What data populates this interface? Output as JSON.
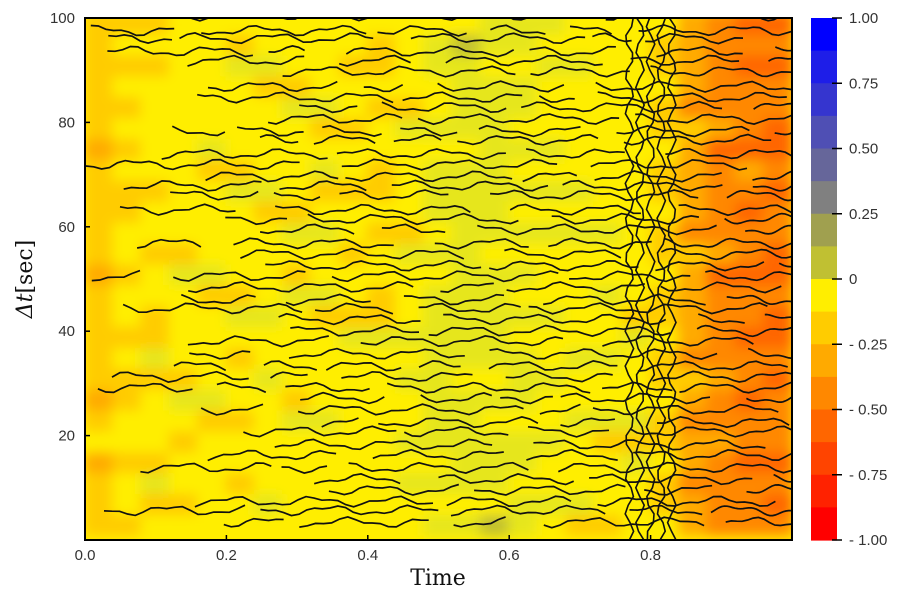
{
  "chart_data": {
    "type": "heatmap",
    "title": "",
    "xlabel": "Time",
    "ylabel_prefix": "Δt",
    "ylabel_unit": "[sec]",
    "xlim": [
      0,
      1
    ],
    "ylim": [
      0,
      100
    ],
    "x_ticks": [
      "0.0",
      "0.2",
      "0.4",
      "0.6",
      "0.8"
    ],
    "x_tick_values": [
      0.0,
      0.2,
      0.4,
      0.6,
      0.8
    ],
    "y_ticks": [
      "20",
      "40",
      "60",
      "80",
      "100"
    ],
    "y_tick_values": [
      20,
      40,
      60,
      80,
      100
    ],
    "x": [
      0.02,
      0.06,
      0.1,
      0.14,
      0.18,
      0.22,
      0.26,
      0.3,
      0.34,
      0.38,
      0.42,
      0.46,
      0.5,
      0.54,
      0.58,
      0.62,
      0.66,
      0.7,
      0.74,
      0.78,
      0.82,
      0.86,
      0.9,
      0.94,
      0.98
    ],
    "y": [
      3,
      7,
      11,
      15,
      19,
      23,
      27,
      31,
      35,
      39,
      43,
      47,
      51,
      55,
      59,
      63,
      67,
      71,
      75,
      79,
      83,
      87,
      91,
      95,
      99
    ],
    "colorbar": {
      "range": [
        -1.0,
        1.0
      ],
      "levels": 16,
      "tick_labels": [
        "1.00",
        "0.75",
        "0.50",
        "0.25",
        "0",
        "- 0.25",
        "- 0.50",
        "- 0.75",
        "- 1.00"
      ],
      "tick_values": [
        1.0,
        0.75,
        0.5,
        0.25,
        0.0,
        -0.25,
        -0.5,
        -0.75,
        -1.0
      ],
      "colors_high_to_low": [
        "#0000ff",
        "#1e1ee8",
        "#3535cf",
        "#4f4fb4",
        "#66669a",
        "#808080",
        "#a0a04f",
        "#c0c032",
        "#e6e61a",
        "#ffee00",
        "#ffcc00",
        "#ffaa00",
        "#ff8800",
        "#ff6600",
        "#ff4400",
        "#ff2200",
        "#ff0000"
      ]
    },
    "contour_lines": true,
    "grid": false,
    "legend": "colorbar-right"
  }
}
